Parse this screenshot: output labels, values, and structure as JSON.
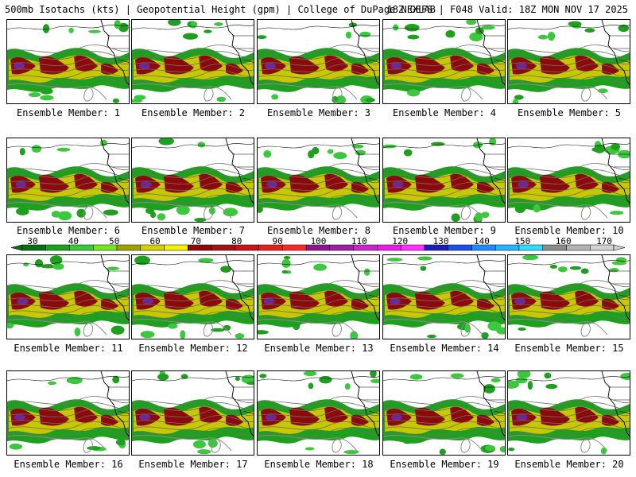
{
  "header": {
    "title_left": "500mb Isotachs (kts) | Geopotential Height (gpm) | College of DuPage NEXLAB",
    "title_right": "18Z GEFS | F048 Valid: 18Z MON NOV 17 2025"
  },
  "panels": [
    {
      "label": "Ensemble Member: 1"
    },
    {
      "label": "Ensemble Member: 2"
    },
    {
      "label": "Ensemble Member: 3"
    },
    {
      "label": "Ensemble Member: 4"
    },
    {
      "label": "Ensemble Member: 5"
    },
    {
      "label": "Ensemble Member: 6"
    },
    {
      "label": "Ensemble Member: 7"
    },
    {
      "label": "Ensemble Member: 8"
    },
    {
      "label": "Ensemble Member: 9"
    },
    {
      "label": "Ensemble Member: 10"
    },
    {
      "label": "Ensemble Member: 11"
    },
    {
      "label": "Ensemble Member: 12"
    },
    {
      "label": "Ensemble Member: 13"
    },
    {
      "label": "Ensemble Member: 14"
    },
    {
      "label": "Ensemble Member: 15"
    },
    {
      "label": "Ensemble Member: 16"
    },
    {
      "label": "Ensemble Member: 17"
    },
    {
      "label": "Ensemble Member: 18"
    },
    {
      "label": "Ensemble Member: 19"
    },
    {
      "label": "Ensemble Member: 20"
    }
  ],
  "colorbar": {
    "labels": [
      "30",
      "40",
      "50",
      "60",
      "70",
      "80",
      "90",
      "100",
      "110",
      "120",
      "130",
      "140",
      "150",
      "160",
      "170"
    ],
    "colors": [
      "#0a6e14",
      "#1ea01e",
      "#3cc83c",
      "#78e61e",
      "#a0a000",
      "#d2d200",
      "#f0f000",
      "#8c0a0a",
      "#a01414",
      "#c81414",
      "#e61e1e",
      "#ff2828",
      "#8c148c",
      "#a01ea0",
      "#c828c8",
      "#e61ee6",
      "#ff32ff",
      "#1e1eb4",
      "#1e50e6",
      "#1e8cff",
      "#28b4ff",
      "#32dcff",
      "#8c8c8c",
      "#b4b4b4",
      "#d2d2d2"
    ]
  },
  "theme": {
    "jet_dark_red": "#8c0a0a",
    "jet_yellow": "#c8c800",
    "jet_green": "#1ea01e",
    "jet_light_green": "#3cc83c",
    "jet_purple": "#6e2896"
  }
}
